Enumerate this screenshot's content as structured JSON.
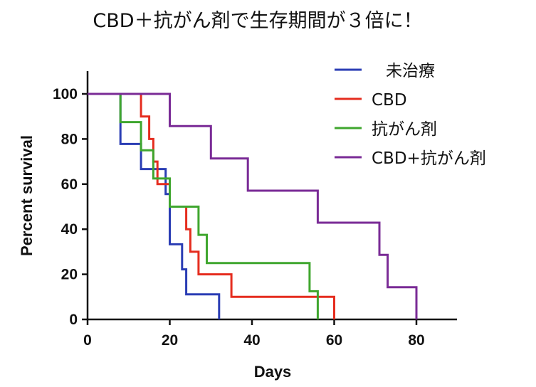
{
  "chart_data": {
    "type": "line",
    "title": "CBD＋抗がん剤で生存期間が３倍に！",
    "xlabel": "Days",
    "ylabel": "Percent survival",
    "xlim": [
      0,
      90
    ],
    "ylim": [
      0,
      110
    ],
    "xticks": [
      0,
      20,
      40,
      60,
      80
    ],
    "yticks": [
      0,
      20,
      40,
      60,
      80,
      100
    ],
    "legend_position": "top-right",
    "grid": false,
    "series": [
      {
        "name": "未治療",
        "color": "#2a3db4",
        "x": [
          0,
          8,
          8,
          13,
          13,
          18,
          18,
          19,
          19,
          20,
          20,
          22,
          22,
          23,
          23,
          24,
          24,
          32,
          32
        ],
        "y": [
          100,
          100,
          77.8,
          77.8,
          66.7,
          66.7,
          66.7,
          66.7,
          55.6,
          55.6,
          33.3,
          33.3,
          33.3,
          33.3,
          22.2,
          22.2,
          11.1,
          11.1,
          0
        ]
      },
      {
        "name": "CBD",
        "color": "#e52d1f",
        "x": [
          0,
          13,
          13,
          15,
          15,
          16,
          16,
          17,
          17,
          18,
          18,
          20,
          20,
          24,
          24,
          25,
          25,
          27,
          27,
          35,
          35,
          60,
          60
        ],
        "y": [
          100,
          100,
          90,
          90,
          80,
          80,
          70,
          70,
          60,
          60,
          60,
          60,
          50,
          50,
          40,
          40,
          30,
          30,
          20,
          20,
          10,
          10,
          0
        ]
      },
      {
        "name": "抗がん剤",
        "color": "#3fa62e",
        "x": [
          0,
          8,
          8,
          13,
          13,
          16,
          16,
          20,
          20,
          27,
          27,
          29,
          29,
          54,
          54,
          56,
          56
        ],
        "y": [
          100,
          100,
          87.5,
          87.5,
          75,
          75,
          62.5,
          62.5,
          50,
          50,
          37.5,
          37.5,
          25,
          25,
          12.5,
          12.5,
          0
        ]
      },
      {
        "name": "CBD+抗がん剤",
        "color": "#7a2b96",
        "x": [
          0,
          20,
          20,
          30,
          30,
          39,
          39,
          56,
          56,
          71,
          71,
          73,
          73,
          80,
          80
        ],
        "y": [
          100,
          100,
          85.7,
          85.7,
          71.4,
          71.4,
          57.1,
          57.1,
          42.9,
          42.9,
          28.6,
          28.6,
          14.3,
          14.3,
          0
        ]
      }
    ]
  }
}
